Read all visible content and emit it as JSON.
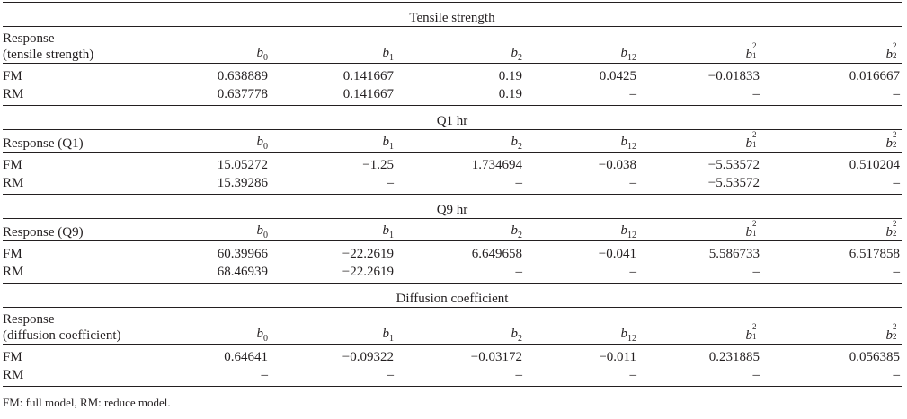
{
  "coef_headers": [
    {
      "base": "b",
      "sub": "0",
      "sup": ""
    },
    {
      "base": "b",
      "sub": "1",
      "sup": ""
    },
    {
      "base": "b",
      "sub": "2",
      "sup": ""
    },
    {
      "base": "b",
      "sub": "12",
      "sup": ""
    },
    {
      "base": "b",
      "sub": "1",
      "sup": "2"
    },
    {
      "base": "b",
      "sub": "2",
      "sup": "2"
    }
  ],
  "sections": [
    {
      "title": "Tensile strength",
      "response_label_line1": "Response",
      "response_label_line2": "(tensile strength)",
      "rows": [
        {
          "label": "FM",
          "values": [
            "0.638889",
            "0.141667",
            "0.19",
            "0.0425",
            "−0.01833",
            "0.016667"
          ]
        },
        {
          "label": "RM",
          "values": [
            "0.637778",
            "0.141667",
            "0.19",
            "–",
            "–",
            "–"
          ]
        }
      ]
    },
    {
      "title": "Q1 hr",
      "response_label_line1": "Response (Q1)",
      "response_label_line2": "",
      "rows": [
        {
          "label": "FM",
          "values": [
            "15.05272",
            "−1.25",
            "1.734694",
            "−0.038",
            "−5.53572",
            "0.510204"
          ]
        },
        {
          "label": "RM",
          "values": [
            "15.39286",
            "–",
            "–",
            "–",
            "−5.53572",
            "–"
          ]
        }
      ]
    },
    {
      "title": "Q9 hr",
      "response_label_line1": "Response (Q9)",
      "response_label_line2": "",
      "rows": [
        {
          "label": "FM",
          "values": [
            "60.39966",
            "−22.2619",
            "6.649658",
            "−0.041",
            "5.586733",
            "6.517858"
          ]
        },
        {
          "label": "RM",
          "values": [
            "68.46939",
            "−22.2619",
            "–",
            "–",
            "–",
            "–"
          ]
        }
      ]
    },
    {
      "title": "Diffusion coefficient",
      "response_label_line1": "Response",
      "response_label_line2": "(diffusion coefficient)",
      "rows": [
        {
          "label": "FM",
          "values": [
            "0.64641",
            "−0.09322",
            "−0.03172",
            "−0.011",
            "0.231885",
            "0.056385"
          ]
        },
        {
          "label": "RM",
          "values": [
            "–",
            "–",
            "–",
            "–",
            "–",
            "–"
          ]
        }
      ]
    }
  ],
  "footnote": "FM: full model, RM: reduce model."
}
